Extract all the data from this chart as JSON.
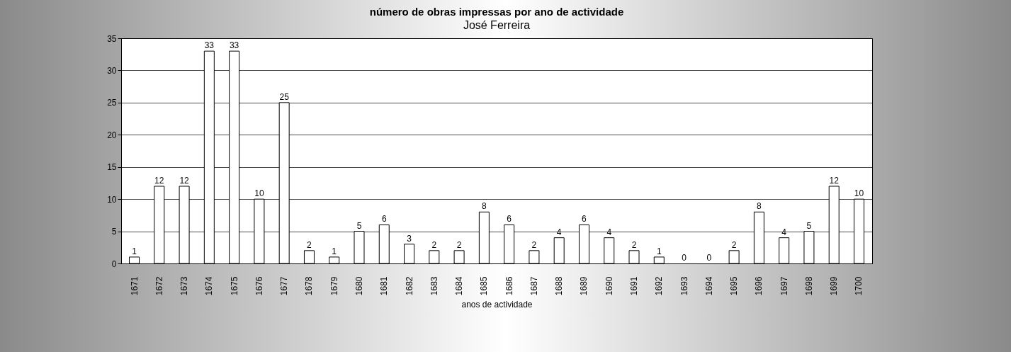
{
  "chart_data": {
    "type": "bar",
    "title": "número de obras impressas por ano de actividade",
    "subtitle": "José Ferreira",
    "xlabel": "anos de actividade",
    "categories": [
      "1671",
      "1672",
      "1673",
      "1674",
      "1675",
      "1676",
      "1677",
      "1678",
      "1679",
      "1680",
      "1681",
      "1682",
      "1683",
      "1684",
      "1685",
      "1686",
      "1687",
      "1688",
      "1689",
      "1690",
      "1691",
      "1692",
      "1693",
      "1694",
      "1695",
      "1696",
      "1697",
      "1698",
      "1699",
      "1700"
    ],
    "values": [
      1,
      12,
      12,
      33,
      33,
      10,
      25,
      2,
      1,
      5,
      6,
      3,
      2,
      2,
      8,
      6,
      2,
      4,
      6,
      4,
      2,
      1,
      0,
      0,
      2,
      8,
      4,
      5,
      12,
      10
    ],
    "color": "#ffffff",
    "ylim": [
      0,
      35
    ],
    "yticks": [
      0,
      5,
      10,
      15,
      20,
      25,
      30,
      35
    ],
    "grid": "y",
    "data_labels": true
  }
}
